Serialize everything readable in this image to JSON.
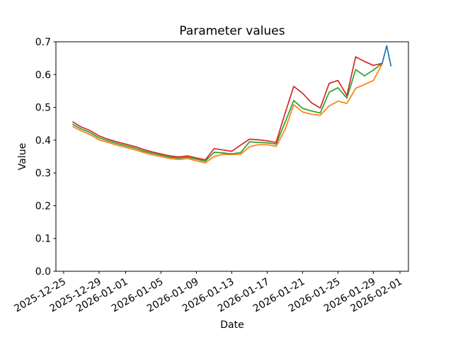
{
  "figure": {
    "background": "#ffffff",
    "text_color": "#000000"
  },
  "chart_data": {
    "type": "line",
    "title": "Parameter values",
    "xlabel": "Date",
    "ylabel": "Value",
    "grid": false,
    "legend": "none",
    "ylim": [
      0.0,
      0.7
    ],
    "xlim": [
      "2025-12-24T03:00:00",
      "2026-02-01T23:00:00"
    ],
    "yticks": [
      "0.0",
      "0.1",
      "0.2",
      "0.3",
      "0.4",
      "0.5",
      "0.6",
      "0.7"
    ],
    "xtick_labels": [
      "2025-12-25",
      "2025-12-29",
      "2026-01-01",
      "2026-01-05",
      "2026-01-09",
      "2026-01-13",
      "2026-01-17",
      "2026-01-21",
      "2026-01-25",
      "2026-01-29",
      "2026-02-01"
    ],
    "x": [
      "2025-12-26",
      "2025-12-27",
      "2025-12-28",
      "2025-12-29",
      "2025-12-30",
      "2025-12-31",
      "2026-01-01",
      "2026-01-02",
      "2026-01-03",
      "2026-01-04",
      "2026-01-05",
      "2026-01-06",
      "2026-01-07",
      "2026-01-08",
      "2026-01-09",
      "2026-01-10",
      "2026-01-11",
      "2026-01-12",
      "2026-01-13",
      "2026-01-14",
      "2026-01-15",
      "2026-01-16",
      "2026-01-17",
      "2026-01-18",
      "2026-01-19",
      "2026-01-20",
      "2026-01-21",
      "2026-01-22",
      "2026-01-23",
      "2026-01-24",
      "2026-01-25",
      "2026-01-26",
      "2026-01-27",
      "2026-01-28",
      "2026-01-29",
      "2026-01-30"
    ],
    "series": [
      {
        "name": "blue",
        "color": "#1f77b4",
        "x": [
          "2026-01-30T00:00:00",
          "2026-01-30T12:00:00",
          "2026-01-31T00:00:00"
        ],
        "values": [
          0.634,
          0.688,
          0.625
        ]
      },
      {
        "name": "orange",
        "color": "#ff7f0e",
        "values": [
          0.442,
          0.428,
          0.417,
          0.401,
          0.393,
          0.385,
          0.378,
          0.371,
          0.363,
          0.355,
          0.35,
          0.344,
          0.341,
          0.344,
          0.337,
          0.331,
          0.35,
          0.357,
          0.356,
          0.357,
          0.38,
          0.386,
          0.386,
          0.381,
          0.431,
          0.508,
          0.486,
          0.479,
          0.476,
          0.504,
          0.519,
          0.512,
          0.558,
          0.57,
          0.582,
          0.633
        ]
      },
      {
        "name": "green",
        "color": "#2ca02c",
        "values": [
          0.449,
          0.434,
          0.423,
          0.407,
          0.398,
          0.39,
          0.383,
          0.376,
          0.367,
          0.36,
          0.354,
          0.348,
          0.345,
          0.348,
          0.342,
          0.336,
          0.363,
          0.361,
          0.358,
          0.362,
          0.395,
          0.393,
          0.392,
          0.388,
          0.453,
          0.521,
          0.497,
          0.489,
          0.483,
          0.546,
          0.56,
          0.528,
          0.615,
          0.596,
          0.614,
          0.634
        ]
      },
      {
        "name": "red",
        "color": "#d62728",
        "values": [
          0.456,
          0.44,
          0.429,
          0.413,
          0.403,
          0.395,
          0.388,
          0.381,
          0.372,
          0.364,
          0.358,
          0.352,
          0.349,
          0.352,
          0.346,
          0.34,
          0.374,
          0.37,
          0.366,
          0.385,
          0.403,
          0.401,
          0.398,
          0.393,
          0.48,
          0.564,
          0.543,
          0.514,
          0.498,
          0.573,
          0.582,
          0.536,
          0.654,
          0.64,
          0.628,
          0.634
        ]
      }
    ]
  }
}
